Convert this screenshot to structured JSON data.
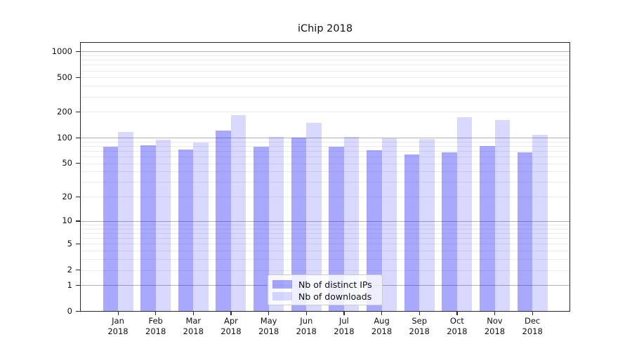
{
  "chart_data": {
    "type": "bar",
    "title": "iChip 2018",
    "categories": [
      "Jan 2018",
      "Feb 2018",
      "Mar 2018",
      "Apr 2018",
      "May 2018",
      "Jun 2018",
      "Jul 2018",
      "Aug 2018",
      "Sep 2018",
      "Oct 2018",
      "Nov 2018",
      "Dec 2018"
    ],
    "series": [
      {
        "name": "Nb of distinct IPs",
        "color": "rgba(0,0,255,0.34)",
        "values": [
          78,
          81,
          73,
          120,
          78,
          101,
          79,
          71,
          64,
          68,
          80,
          67
        ]
      },
      {
        "name": "Nb of downloads",
        "color": "rgba(0,0,255,0.15)",
        "values": [
          116,
          95,
          88,
          184,
          103,
          150,
          103,
          98,
          97,
          172,
          161,
          109
        ]
      }
    ],
    "xlabel": "",
    "ylabel": "",
    "y_ticks": [
      0,
      1,
      2,
      5,
      10,
      20,
      50,
      100,
      200,
      500,
      1000
    ],
    "ylim": [
      0,
      1300
    ],
    "yscale": "log10(value+1)",
    "grid": true,
    "legend_position": "lower center",
    "colors": {
      "major_grid": "#b3b3b3",
      "minor_grid": "#ebebeb",
      "spine": "#262626",
      "text": "#111111",
      "background": "#ffffff"
    }
  }
}
